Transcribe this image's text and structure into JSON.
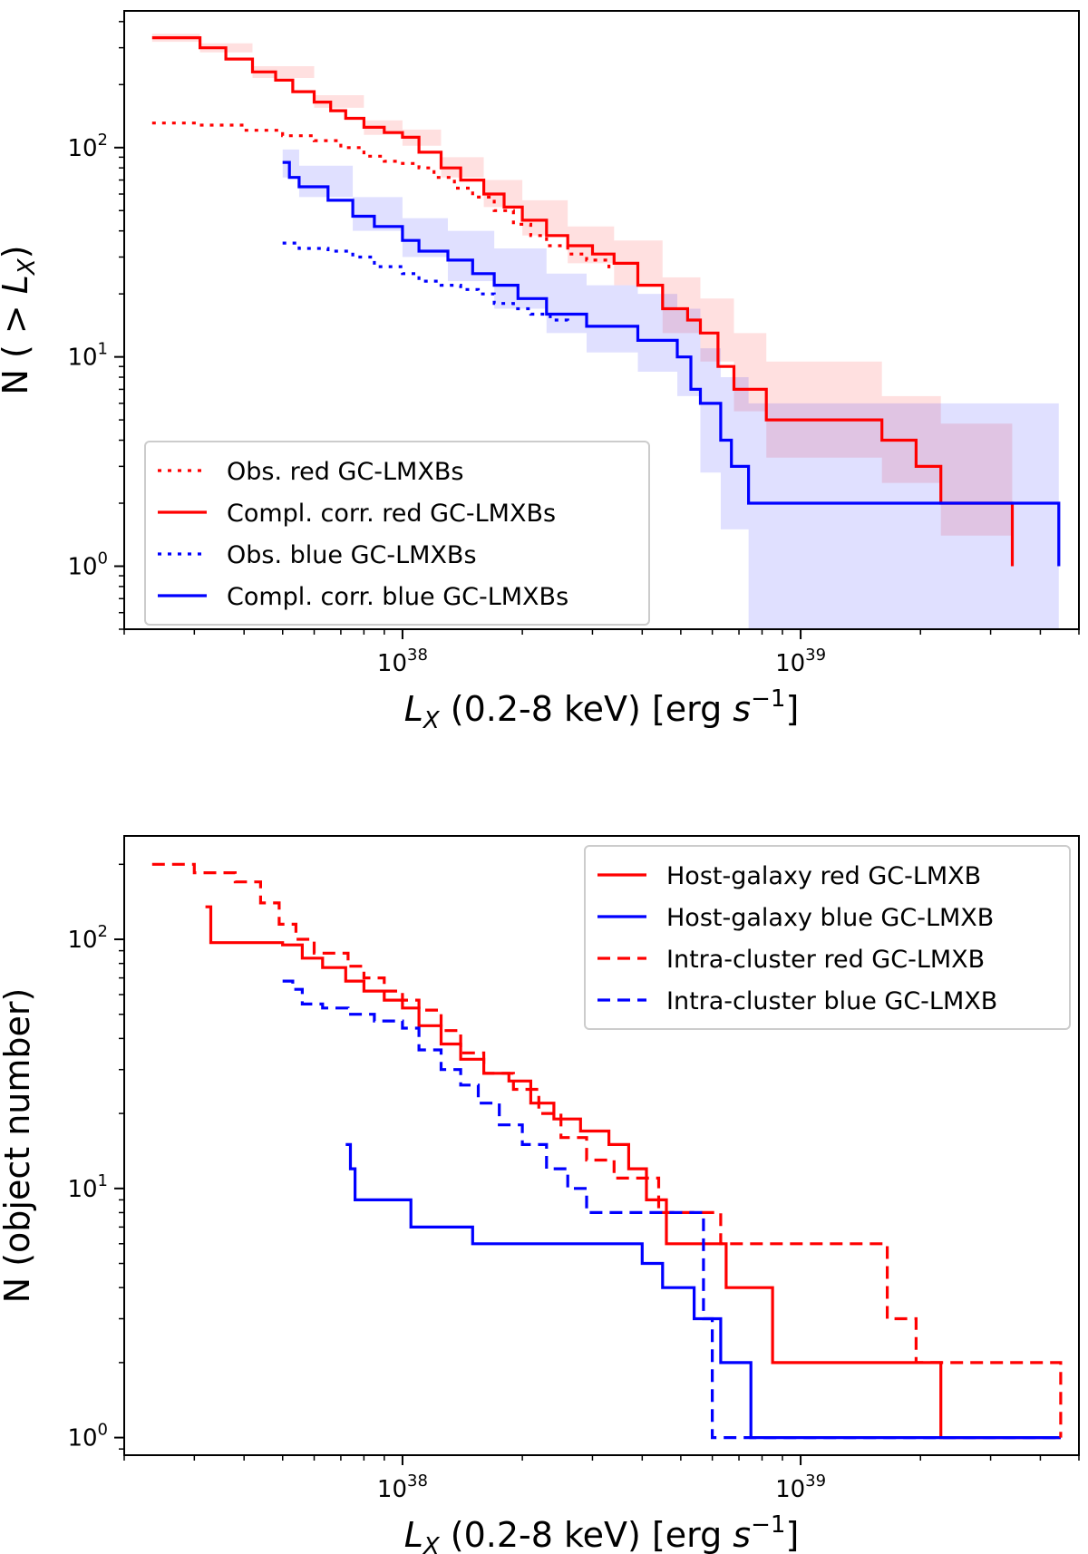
{
  "chart_data": [
    {
      "type": "line",
      "xscale": "log",
      "yscale": "log",
      "xlim": [
        2e+37,
        5e+39
      ],
      "ylim": [
        0.5,
        450
      ],
      "xlabel_var": "L",
      "xlabel_sub": "X",
      "xlabel_rest": " (0.2-8 keV) [erg ",
      "xlabel_s": "s",
      "xlabel_exp": "−1",
      "xlabel_close": "]",
      "ylabel_prefix": "N ( > ",
      "ylabel_var": "L",
      "ylabel_sub": "X",
      "ylabel_close": ")",
      "xticks": [
        {
          "value": 1e+38,
          "base": "10",
          "exp": "38"
        },
        {
          "value": 1e+39,
          "base": "10",
          "exp": "39"
        }
      ],
      "yticks": [
        {
          "value": 1,
          "base": "10",
          "exp": "0"
        },
        {
          "value": 10,
          "base": "10",
          "exp": "1"
        },
        {
          "value": 100,
          "base": "10",
          "exp": "2"
        }
      ],
      "legend_position": "lower-left",
      "series": [
        {
          "name": "Obs. red GC-LMXBs",
          "color": "#ff0000",
          "style": "dotted",
          "x": [
            2.35e+37,
            3e+37,
            4e+37,
            5e+37,
            6e+37,
            7e+37,
            8e+37,
            9e+37,
            1e+38,
            1.1e+38,
            1.2e+38,
            1.35e+38,
            1.5e+38,
            1.7e+38,
            1.9e+38,
            2.1e+38,
            2.3e+38,
            2.6e+38,
            2.9e+38,
            3.3e+38
          ],
          "y": [
            131,
            128,
            121,
            114,
            108,
            100,
            91,
            86,
            84,
            80,
            72,
            64,
            58,
            50,
            43,
            38,
            34,
            31,
            29,
            26
          ]
        },
        {
          "name": "Compl. corr. red GC-LMXBs",
          "color": "#ff0000",
          "style": "solid",
          "x": [
            2.35e+37,
            3.1e+37,
            3.6e+37,
            4.2e+37,
            4.8e+37,
            5.3e+37,
            6e+37,
            6.6e+37,
            7.2e+37,
            8e+37,
            9e+37,
            1e+38,
            1.1e+38,
            1.25e+38,
            1.4e+38,
            1.6e+38,
            1.8e+38,
            2e+38,
            2.3e+38,
            2.6e+38,
            3e+38,
            3.4e+38,
            3.9e+38,
            4.5e+38,
            5.2e+38,
            5.6e+38,
            6.2e+38,
            6.8e+38,
            8.2e+38,
            1.6e+39,
            1.95e+39,
            2.25e+39,
            3.4e+39
          ],
          "y": [
            335,
            300,
            265,
            230,
            210,
            185,
            165,
            150,
            138,
            125,
            118,
            112,
            95,
            80,
            70,
            60,
            52,
            45,
            38,
            34,
            31,
            28,
            22,
            17,
            15,
            13,
            9,
            7,
            5,
            4,
            3,
            2,
            1
          ]
        },
        {
          "name": "Obs. blue GC-LMXBs",
          "color": "#0000ff",
          "style": "dotted",
          "x": [
            5e+37,
            5.5e+37,
            6.5e+37,
            7.5e+37,
            8.5e+37,
            1e+38,
            1.1e+38,
            1.25e+38,
            1.4e+38,
            1.55e+38,
            1.7e+38,
            1.9e+38,
            2.1e+38,
            2.35e+38,
            2.6e+38
          ],
          "y": [
            35,
            33,
            32,
            30,
            27,
            25,
            23,
            22,
            21,
            20,
            18,
            17,
            16,
            15,
            14
          ]
        },
        {
          "name": "Compl. corr. blue GC-LMXBs",
          "color": "#0000ff",
          "style": "solid",
          "x": [
            5e+37,
            5.2e+37,
            5.5e+37,
            6.5e+37,
            7.5e+37,
            8.5e+37,
            1e+38,
            1.1e+38,
            1.3e+38,
            1.5e+38,
            1.7e+38,
            1.95e+38,
            2.3e+38,
            2.9e+38,
            3.9e+38,
            4.9e+38,
            5.3e+38,
            5.6e+38,
            6.3e+38,
            6.7e+38,
            7.4e+38,
            4.45e+39
          ],
          "y": [
            85,
            72,
            65,
            56,
            47,
            42,
            36,
            32,
            29,
            25,
            22,
            19,
            16,
            14,
            12,
            10,
            7,
            6,
            4,
            3,
            2,
            1
          ]
        }
      ],
      "bands": [
        {
          "color": "#ff0000",
          "x": [
            2.35e+37,
            3.1e+37,
            4.2e+37,
            6e+37,
            8e+37,
            1e+38,
            1.25e+38,
            1.6e+38,
            2e+38,
            2.6e+38,
            3.4e+38,
            4.5e+38,
            5.6e+38,
            6.8e+38,
            8.2e+38,
            1.6e+39,
            2.25e+39,
            3.4e+39
          ],
          "lower": [
            320,
            285,
            215,
            155,
            115,
            102,
            72,
            52,
            38,
            28,
            22,
            13,
            9.5,
            5.5,
            3.3,
            2.5,
            1.4,
            0.5
          ],
          "upper": [
            350,
            315,
            245,
            178,
            135,
            122,
            90,
            70,
            56,
            42,
            36,
            24,
            19,
            13,
            9.5,
            6.5,
            4.8,
            4.5
          ]
        },
        {
          "color": "#0000ff",
          "x": [
            5e+37,
            5.5e+37,
            7.5e+37,
            1e+38,
            1.3e+38,
            1.7e+38,
            2.3e+38,
            2.9e+38,
            3.9e+38,
            4.9e+38,
            5.6e+38,
            6.3e+38,
            7.4e+38,
            4.45e+39
          ],
          "lower": [
            72,
            58,
            40,
            30,
            23,
            17,
            13,
            10.5,
            8.5,
            6.5,
            2.8,
            1.5,
            0.5,
            0.5
          ],
          "upper": [
            98,
            82,
            58,
            46,
            40,
            33,
            25,
            22,
            20,
            17,
            11,
            8,
            6,
            3.4
          ]
        }
      ]
    },
    {
      "type": "line",
      "xscale": "log",
      "yscale": "log",
      "xlim": [
        2e+37,
        5e+39
      ],
      "ylim": [
        0.85,
        260
      ],
      "xlabel_var": "L",
      "xlabel_sub": "X",
      "xlabel_rest": " (0.2-8 keV) [erg ",
      "xlabel_s": "s",
      "xlabel_exp": "−1",
      "xlabel_close": "]",
      "ylabel": "N (object number)",
      "xticks": [
        {
          "value": 1e+38,
          "base": "10",
          "exp": "38"
        },
        {
          "value": 1e+39,
          "base": "10",
          "exp": "39"
        }
      ],
      "yticks": [
        {
          "value": 1,
          "base": "10",
          "exp": "0"
        },
        {
          "value": 10,
          "base": "10",
          "exp": "1"
        },
        {
          "value": 100,
          "base": "10",
          "exp": "2"
        }
      ],
      "legend_position": "top-right",
      "series": [
        {
          "name": "Host-galaxy red GC-LMXB",
          "color": "#ff0000",
          "style": "solid",
          "x": [
            3.2e+37,
            3.3e+37,
            5e+37,
            5.6e+37,
            6.3e+37,
            7.2e+37,
            8e+37,
            9e+37,
            1e+38,
            1.1e+38,
            1.25e+38,
            1.4e+38,
            1.6e+38,
            1.85e+38,
            2.1e+38,
            2.4e+38,
            2.8e+38,
            3.3e+38,
            3.7e+38,
            4.1e+38,
            4.6e+38,
            5.4e+38,
            6.5e+38,
            8.5e+38,
            2.25e+39,
            4.5e+39
          ],
          "y": [
            135,
            97,
            95,
            84,
            77,
            68,
            62,
            57,
            53,
            45,
            38,
            33,
            29,
            27,
            22,
            19,
            17,
            15,
            12,
            9,
            6,
            6,
            4,
            2,
            1,
            1
          ]
        },
        {
          "name": "Host-galaxy blue GC-LMXB",
          "color": "#0000ff",
          "style": "solid",
          "x": [
            7.2e+37,
            7.4e+37,
            7.6e+37,
            9e+37,
            1.05e+38,
            1.5e+38,
            3.5e+38,
            4e+38,
            4.5e+38,
            5.4e+38,
            6.3e+38,
            7.5e+38,
            4.5e+39
          ],
          "y": [
            15,
            12,
            9,
            9,
            7,
            6,
            6,
            5,
            4,
            3,
            2,
            1,
            1
          ]
        },
        {
          "name": "Intra-cluster red GC-LMXB",
          "color": "#ff0000",
          "style": "dashed",
          "x": [
            2.35e+37,
            3e+37,
            3.8e+37,
            4.4e+37,
            4.9e+37,
            5.4e+37,
            6e+37,
            7.3e+37,
            8e+37,
            9e+37,
            1e+38,
            1.1e+38,
            1.25e+38,
            1.4e+38,
            1.6e+38,
            1.9e+38,
            2.2e+38,
            2.5e+38,
            2.9e+38,
            3.4e+38,
            4.4e+38,
            6.3e+38,
            1.65e+39,
            1.95e+39,
            4.5e+39
          ],
          "y": [
            200,
            185,
            170,
            140,
            115,
            100,
            88,
            78,
            70,
            62,
            57,
            52,
            43,
            35,
            29,
            25,
            20,
            16,
            13,
            11,
            8,
            6,
            3,
            2,
            1
          ]
        },
        {
          "name": "Intra-cluster blue GC-LMXB",
          "color": "#0000ff",
          "style": "dashed",
          "x": [
            5e+37,
            5.3e+37,
            5.6e+37,
            6.3e+37,
            7.3e+37,
            8.5e+37,
            1e+38,
            1.1e+38,
            1.25e+38,
            1.4e+38,
            1.55e+38,
            1.75e+38,
            2e+38,
            2.3e+38,
            2.6e+38,
            2.9e+38,
            5.7e+38,
            6e+38,
            4.5e+39
          ],
          "y": [
            68,
            63,
            55,
            53,
            50,
            47,
            44,
            36,
            30,
            26,
            22,
            18,
            15,
            12,
            10,
            8,
            3,
            1,
            1
          ]
        }
      ]
    }
  ]
}
